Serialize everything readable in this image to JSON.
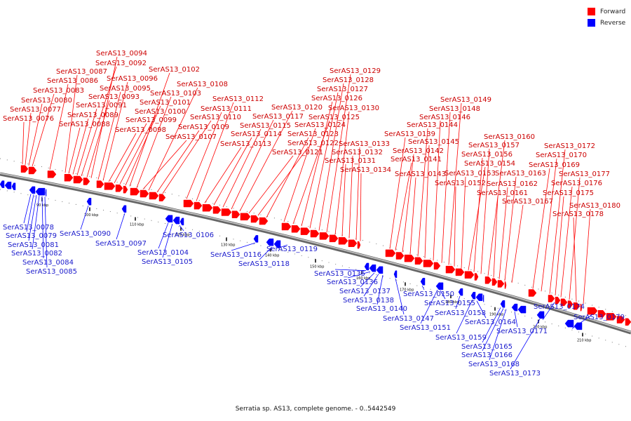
{
  "legend": {
    "forward": {
      "label": "Forward",
      "color": "#ff0000"
    },
    "reverse": {
      "label": "Reverse",
      "color": "#0000ff"
    }
  },
  "caption": "Serratia sp. AS13, complete genome. - 0..5442549",
  "ruler": {
    "unit": "kbp",
    "ticks": [
      "90 kbp",
      "100 kbp",
      "110 kbp",
      "120 kbp",
      "130 kbp",
      "140 kbp",
      "150 kbp",
      "160 kbp",
      "170 kbp",
      "180 kbp",
      "190 kbp",
      "200 kbp",
      "210 kbp"
    ]
  },
  "forward_genes": [
    "SerAS13_0076",
    "SerAS13_0077",
    "SerAS13_0080",
    "SerAS13_0083",
    "SerAS13_0086",
    "SerAS13_0087",
    "SerAS13_0088",
    "SerAS13_0089",
    "SerAS13_0091",
    "SerAS13_0092",
    "SerAS13_0093",
    "SerAS13_0094",
    "SerAS13_0095",
    "SerAS13_0096",
    "SerAS13_0098",
    "SerAS13_0099",
    "SerAS13_0100",
    "SerAS13_0101",
    "SerAS13_0102",
    "SerAS13_0103",
    "SerAS13_0107",
    "SerAS13_0108",
    "SerAS13_0109",
    "SerAS13_0110",
    "SerAS13_0111",
    "SerAS13_0112",
    "SerAS13_0113",
    "SerAS13_0114",
    "SerAS13_0115",
    "SerAS13_0117",
    "SerAS13_0120",
    "SerAS13_0121",
    "SerAS13_0122",
    "SerAS13_0123",
    "SerAS13_0124",
    "SerAS13_0125",
    "SerAS13_0126",
    "SerAS13_0127",
    "SerAS13_0128",
    "SerAS13_0129",
    "SerAS13_0130",
    "SerAS13_0131",
    "SerAS13_0132",
    "SerAS13_0133",
    "SerAS13_0134",
    "SerAS13_0139",
    "SerAS13_0141",
    "SerAS13_0142",
    "SerAS13_0143",
    "SerAS13_0144",
    "SerAS13_0145",
    "SerAS13_0146",
    "SerAS13_0148",
    "SerAS13_0149",
    "SerAS13_0152",
    "SerAS13_0153",
    "SerAS13_0154",
    "SerAS13_0156",
    "SerAS13_0157",
    "SerAS13_0160",
    "SerAS13_0161",
    "SerAS13_0162",
    "SerAS13_0163",
    "SerAS13_0167",
    "SerAS13_0169",
    "SerAS13_0170",
    "SerAS13_0172",
    "SerAS13_0175",
    "SerAS13_0176",
    "SerAS13_0177",
    "SerAS13_0178",
    "SerAS13_0180"
  ],
  "reverse_genes": [
    "SerAS13_0078",
    "SerAS13_0079",
    "SerAS13_0081",
    "SerAS13_0082",
    "SerAS13_0084",
    "SerAS13_0085",
    "SerAS13_0090",
    "SerAS13_0097",
    "SerAS13_0104",
    "SerAS13_0105",
    "SerAS13_0106",
    "SerAS13_0116",
    "SerAS13_0118",
    "SerAS13_0119",
    "SerAS13_0135",
    "SerAS13_0136",
    "SerAS13_0137",
    "SerAS13_0138",
    "SerAS13_0140",
    "SerAS13_0147",
    "SerAS13_0150",
    "SerAS13_0151",
    "SerAS13_0155",
    "SerAS13_0158",
    "SerAS13_0159",
    "SerAS13_0164",
    "SerAS13_0165",
    "SerAS13_0166",
    "SerAS13_0168",
    "SerAS13_0171",
    "SerAS13_0173",
    "SerAS13_0174",
    "SerAS13_0179"
  ]
}
